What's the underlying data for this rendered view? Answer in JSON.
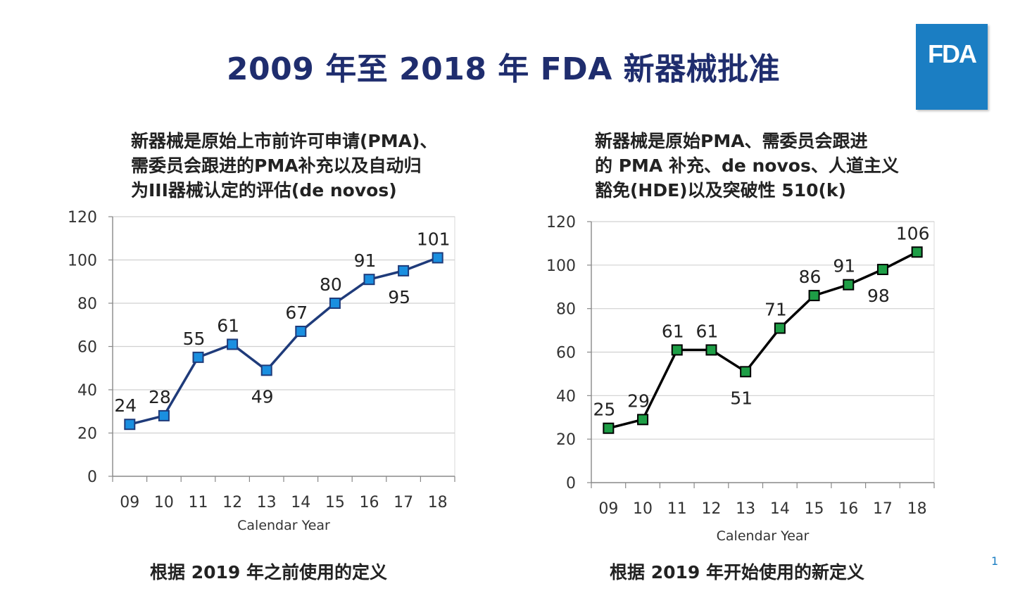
{
  "slide": {
    "title": "2009 年至 2018 年 FDA 新器械批准",
    "logo_text": "FDA",
    "page_number": "1",
    "colors": {
      "title": "#1f2d6e",
      "logo_bg": "#1b7ec3"
    }
  },
  "left_panel": {
    "subtitle_lines": [
      "新器械是原始上市前许可申请(PMA)、",
      "需委员会跟进的PMA补充以及自动归",
      "为III器械认定的评估(de novos)"
    ],
    "caption": "根据 2019 年之前使用的定义"
  },
  "right_panel": {
    "subtitle_lines": [
      "新器械是原始PMA、需委员会跟进",
      "的 PMA 补充、de novos、人道主义",
      "豁免(HDE)以及突破性 510(k)"
    ],
    "caption": "根据 2019 年开始使用的新定义"
  },
  "chart_data": [
    {
      "type": "line",
      "categories": [
        "09",
        "10",
        "11",
        "12",
        "13",
        "14",
        "15",
        "16",
        "17",
        "18"
      ],
      "values": [
        24,
        28,
        55,
        61,
        49,
        67,
        80,
        91,
        95,
        101
      ],
      "label_position": [
        "above",
        "above",
        "above",
        "above",
        "below",
        "above",
        "above",
        "above",
        "below",
        "above"
      ],
      "xlabel": "Calendar Year",
      "ylabel": "",
      "ylim": [
        0,
        120
      ],
      "yticks": [
        0,
        20,
        40,
        60,
        80,
        100,
        120
      ],
      "grid": true,
      "line_color": "#1f3b7a",
      "marker_color": "#1a8fe0"
    },
    {
      "type": "line",
      "categories": [
        "09",
        "10",
        "11",
        "12",
        "13",
        "14",
        "15",
        "16",
        "17",
        "18"
      ],
      "values": [
        25,
        29,
        61,
        61,
        51,
        71,
        86,
        91,
        98,
        106
      ],
      "label_position": [
        "above",
        "above",
        "above",
        "above",
        "below",
        "above",
        "above",
        "above",
        "below",
        "above"
      ],
      "xlabel": "Calendar Year",
      "ylabel": "",
      "ylim": [
        0,
        120
      ],
      "yticks": [
        0,
        20,
        40,
        60,
        80,
        100,
        120
      ],
      "grid": true,
      "line_color": "#000000",
      "marker_color": "#1e9e46"
    }
  ]
}
